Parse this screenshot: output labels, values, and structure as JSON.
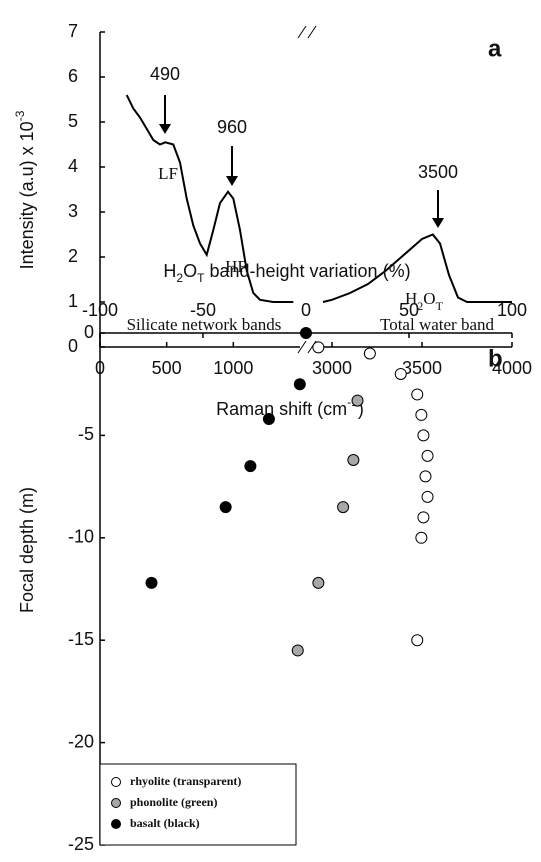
{
  "chart_data": [
    {
      "type": "line",
      "panel_label": "a",
      "ylabel": [
        "Intensity (a.u) x 10",
        "-3"
      ],
      "xlabel": [
        "Raman shift (cm",
        "-1",
        ")"
      ],
      "xlim": [
        0,
        4000
      ],
      "xbreak": [
        1500,
        2900
      ],
      "xticks": [
        0,
        500,
        1000,
        3000,
        3500,
        4000
      ],
      "ylim": [
        0,
        7
      ],
      "yticks": [
        0,
        1,
        2,
        3,
        4,
        5,
        6,
        7
      ],
      "x": [
        200,
        250,
        300,
        350,
        400,
        450,
        490,
        550,
        600,
        650,
        700,
        750,
        800,
        850,
        900,
        960,
        1000,
        1050,
        1100,
        1150,
        1200,
        1300,
        1450,
        null,
        2950,
        3000,
        3100,
        3200,
        3300,
        3400,
        3500,
        3560,
        3600,
        3650,
        3700,
        3750,
        3850,
        4000
      ],
      "series": [
        {
          "color": "#000000",
          "values": [
            5.6,
            5.3,
            5.1,
            4.85,
            4.6,
            4.5,
            4.55,
            4.5,
            4.1,
            3.3,
            2.7,
            2.3,
            2.05,
            2.6,
            3.2,
            3.45,
            3.3,
            2.6,
            1.7,
            1.2,
            1.05,
            1.0,
            1.0,
            null,
            1.0,
            1.05,
            1.2,
            1.4,
            1.7,
            2.05,
            2.4,
            2.5,
            2.3,
            1.6,
            1.1,
            1.0,
            1.0,
            1.0
          ]
        }
      ],
      "annotations": [
        "490",
        "960",
        "3500",
        "LF",
        "HF"
      ],
      "water_label": [
        "H",
        "2",
        "O",
        "T"
      ],
      "region_labels": [
        "Silicate network bands",
        "Total water band"
      ]
    },
    {
      "type": "scatter",
      "panel_label": "b",
      "xlabel": [
        "H",
        "2",
        "O",
        "T",
        " band-height variation (%)"
      ],
      "ylabel": "Focal depth (m)",
      "xlim": [
        -100,
        100
      ],
      "xticks": [
        -100,
        -50,
        0,
        50,
        100
      ],
      "ylim": [
        -25,
        0
      ],
      "yticks": [
        0,
        -5,
        -10,
        -15,
        -20,
        -25
      ],
      "legend": "lower left",
      "series": [
        {
          "name": "rhyolite (transparent)",
          "color": "#ffffff",
          "x": [
            6,
            31,
            46,
            54,
            56,
            57,
            59,
            58,
            59,
            57,
            56,
            54
          ],
          "values": [
            -0.7,
            -1,
            -2,
            -3,
            -4,
            -5,
            -6,
            -7,
            -8,
            -9,
            -10,
            -15
          ]
        },
        {
          "name": "phonolite (green)",
          "color": "#a8a8a8",
          "x": [
            25,
            23,
            18,
            6,
            -4
          ],
          "values": [
            -3.3,
            -6.2,
            -8.5,
            -12.2,
            -15.5
          ]
        },
        {
          "name": "basalt (black)",
          "color": "#000000",
          "x": [
            0,
            -3,
            -18,
            -27,
            -39,
            -75
          ],
          "values": [
            0,
            -2.5,
            -4.2,
            -6.5,
            -8.5,
            -12.2
          ]
        }
      ]
    }
  ]
}
